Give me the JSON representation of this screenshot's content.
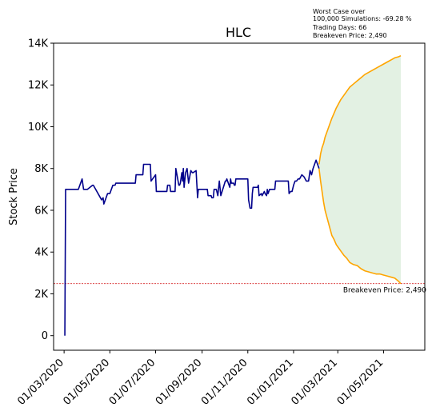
{
  "chart_data": {
    "type": "line",
    "title": "HLC",
    "xlabel": "",
    "ylabel": "Stock Price",
    "xlim": [
      "2020-02-16",
      "2021-06-25"
    ],
    "ylim": [
      -700,
      14000
    ],
    "y_ticks": [
      0,
      2000,
      4000,
      6000,
      8000,
      10000,
      12000,
      14000
    ],
    "y_tick_labels": [
      "0",
      "2K",
      "4K",
      "6K",
      "8K",
      "10K",
      "12K",
      "14K"
    ],
    "x_ticks": [
      "2020-03-01",
      "2020-05-01",
      "2020-07-01",
      "2020-09-01",
      "2020-11-01",
      "2021-01-01",
      "2021-03-01",
      "2021-05-01"
    ],
    "x_tick_labels": [
      "01/03/2020",
      "01/05/2020",
      "01/07/2020",
      "01/09/2020",
      "01/11/2020",
      "01/01/2021",
      "01/03/2021",
      "01/05/2021"
    ],
    "grid": false,
    "colors": {
      "history": "#00008b",
      "simulation": "#ffa500",
      "band": "#e3f1e3",
      "breakeven": "#d62728"
    },
    "series": [
      {
        "type": "line",
        "x": [
          "2020-03-02",
          "2020-03-03",
          "2020-03-20",
          "2020-03-25",
          "2020-03-27",
          "2020-04-01",
          "2020-04-08",
          "2020-04-09",
          "2020-04-20",
          "2020-04-22",
          "2020-04-23",
          "2020-04-24",
          "2020-04-28",
          "2020-05-01",
          "2020-05-04",
          "2020-05-05",
          "2020-05-08",
          "2020-05-09",
          "2020-05-13",
          "2020-05-14",
          "2020-06-04",
          "2020-06-05",
          "2020-06-14",
          "2020-06-15",
          "2020-06-24",
          "2020-06-25",
          "2020-07-01",
          "2020-07-02",
          "2020-07-16",
          "2020-07-17",
          "2020-07-20",
          "2020-07-21",
          "2020-07-27",
          "2020-07-28",
          "2020-08-01",
          "2020-08-02",
          "2020-08-03",
          "2020-08-05",
          "2020-08-06",
          "2020-08-07",
          "2020-08-08",
          "2020-08-10",
          "2020-08-12",
          "2020-08-14",
          "2020-08-15",
          "2020-08-17",
          "2020-08-19",
          "2020-08-20",
          "2020-08-24",
          "2020-08-26",
          "2020-08-27",
          "2020-09-08",
          "2020-09-09",
          "2020-09-13",
          "2020-09-14",
          "2020-09-16",
          "2020-09-17",
          "2020-09-20",
          "2020-09-22",
          "2020-09-24",
          "2020-09-26",
          "2020-10-02",
          "2020-10-03",
          "2020-10-04",
          "2020-10-08",
          "2020-10-09",
          "2020-10-10",
          "2020-10-13",
          "2020-10-14",
          "2020-10-15",
          "2020-10-16",
          "2020-10-17",
          "2020-10-18",
          "2020-10-19",
          "2020-10-20",
          "2020-10-21",
          "2020-10-22",
          "2020-10-23",
          "2020-10-24",
          "2020-10-27",
          "2020-10-30",
          "2020-11-01",
          "2020-11-02",
          "2020-11-04",
          "2020-11-06",
          "2020-11-07",
          "2020-11-08",
          "2020-11-14",
          "2020-11-15",
          "2020-11-16",
          "2020-11-19",
          "2020-11-20",
          "2020-11-23",
          "2020-11-24",
          "2020-11-26",
          "2020-11-27",
          "2020-11-28",
          "2020-11-29",
          "2020-11-30",
          "2020-12-07",
          "2020-12-08",
          "2020-12-25",
          "2020-12-26",
          "2020-12-28",
          "2020-12-30",
          "2021-01-01",
          "2021-01-02",
          "2021-01-03",
          "2021-01-05",
          "2021-01-07",
          "2021-01-09",
          "2021-01-12",
          "2021-01-15",
          "2021-01-18",
          "2021-01-21",
          "2021-01-23",
          "2021-01-25",
          "2021-01-27",
          "2021-01-29",
          "2021-01-31",
          "2021-02-02",
          "2021-02-04"
        ],
        "y": [
          0,
          7000,
          7000,
          7500,
          7000,
          7000,
          7200,
          7200,
          6500,
          6600,
          6300,
          6400,
          6800,
          6800,
          7100,
          7200,
          7200,
          7300,
          7300,
          7300,
          7300,
          7700,
          7700,
          8200,
          8200,
          7400,
          7700,
          6900,
          6900,
          7200,
          7200,
          6900,
          6900,
          8000,
          7200,
          7200,
          7300,
          7800,
          7400,
          8000,
          7100,
          7800,
          8000,
          7300,
          7500,
          7900,
          7800,
          7800,
          7900,
          6600,
          7000,
          7000,
          6700,
          6700,
          6600,
          6600,
          7000,
          7000,
          6700,
          7400,
          6700,
          7400,
          7400,
          7500,
          7100,
          7500,
          7300,
          7300,
          7200,
          7200,
          7500,
          7500,
          7500,
          7500,
          7500,
          7500,
          7500,
          7500,
          7500,
          7500,
          7500,
          7500,
          6500,
          6100,
          6100,
          6800,
          7100,
          7100,
          7200,
          6700,
          6800,
          6700,
          6900,
          6800,
          6700,
          7000,
          6800,
          6900,
          7000,
          7000,
          7400,
          7400,
          6800,
          6900,
          6900,
          7200,
          7300,
          7400,
          7400,
          7500,
          7500,
          7700,
          7600,
          7400,
          7400,
          7900,
          7700,
          8000,
          8200,
          8400,
          8200,
          8000
        ]
      },
      {
        "type": "line",
        "x": [
          "2021-02-04",
          "2021-02-06",
          "2021-02-08",
          "2021-02-10",
          "2021-02-12",
          "2021-02-15",
          "2021-02-18",
          "2021-02-21",
          "2021-02-24",
          "2021-02-27",
          "2021-03-02",
          "2021-03-05",
          "2021-03-09",
          "2021-03-13",
          "2021-03-17",
          "2021-03-22",
          "2021-03-27",
          "2021-04-01",
          "2021-04-06",
          "2021-04-11",
          "2021-04-16",
          "2021-04-21",
          "2021-04-26",
          "2021-05-01",
          "2021-05-06",
          "2021-05-11",
          "2021-05-16",
          "2021-05-21",
          "2021-05-24"
        ],
        "y": [
          8200,
          8700,
          9000,
          9200,
          9500,
          9800,
          10100,
          10400,
          10650,
          10900,
          11100,
          11300,
          11500,
          11700,
          11900,
          12050,
          12200,
          12350,
          12500,
          12600,
          12700,
          12800,
          12900,
          13000,
          13100,
          13200,
          13300,
          13350,
          13400
        ]
      },
      {
        "type": "line",
        "x": [
          "2021-02-04",
          "2021-02-06",
          "2021-02-08",
          "2021-02-10",
          "2021-02-12",
          "2021-02-15",
          "2021-02-18",
          "2021-02-21",
          "2021-02-24",
          "2021-02-27",
          "2021-03-02",
          "2021-03-05",
          "2021-03-09",
          "2021-03-13",
          "2021-03-17",
          "2021-03-22",
          "2021-03-27",
          "2021-04-01",
          "2021-04-06",
          "2021-04-11",
          "2021-04-16",
          "2021-04-21",
          "2021-04-26",
          "2021-05-01",
          "2021-05-06",
          "2021-05-11",
          "2021-05-16",
          "2021-05-21",
          "2021-05-24"
        ],
        "y": [
          8000,
          7400,
          6900,
          6400,
          6000,
          5600,
          5200,
          4800,
          4600,
          4350,
          4200,
          4050,
          3850,
          3700,
          3500,
          3400,
          3350,
          3200,
          3100,
          3050,
          3000,
          2950,
          2950,
          2900,
          2850,
          2800,
          2750,
          2600,
          2490
        ]
      }
    ],
    "breakeven_value": 2490,
    "breakeven_label": "Breakeven Price: 2,490",
    "breakeven_label_x": "2021-03-08",
    "notes": [
      "Worst Case over",
      "100,000 Simulations: -69.28 %",
      "Trading Days: 66",
      "Breakeven Price: 2,490"
    ]
  }
}
